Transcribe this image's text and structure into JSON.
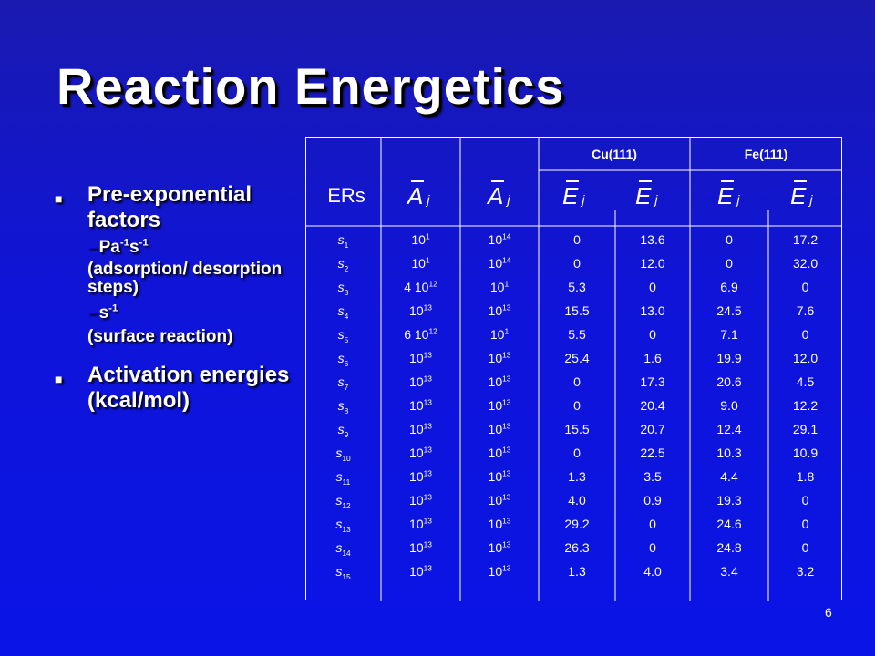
{
  "title": "Reaction Energetics",
  "bullets": {
    "b1": "Pre-exponential factors",
    "b1_sub1_pa": "Pa",
    "b1_sub1_s": "s",
    "b1_sub1_exp1": "-1",
    "b1_sub1_exp2": "-1",
    "b1_sub1_note": "(adsorption/ desorption steps)",
    "b1_sub2": "s",
    "b1_sub2_exp": "-1",
    "b1_sub2_note": "(surface reaction)",
    "b2": "Activation energies (kcal/mol)"
  },
  "table": {
    "header_cu": "Cu(111)",
    "header_fe": "Fe(111)",
    "ers": "ERs",
    "sym_a": "A",
    "sym_e": "E",
    "sub_j": "j",
    "ers_rows": [
      {
        "s": "s",
        "n": "1"
      },
      {
        "s": "s",
        "n": "2"
      },
      {
        "s": "s",
        "n": "3"
      },
      {
        "s": "s",
        "n": "4"
      },
      {
        "s": "s",
        "n": "5"
      },
      {
        "s": "s",
        "n": "6"
      },
      {
        "s": "s",
        "n": "7"
      },
      {
        "s": "s",
        "n": "8"
      },
      {
        "s": "s",
        "n": "9"
      },
      {
        "s": "s",
        "n": "10"
      },
      {
        "s": "s",
        "n": "11"
      },
      {
        "s": "s",
        "n": "12"
      },
      {
        "s": "s",
        "n": "13"
      },
      {
        "s": "s",
        "n": "14"
      },
      {
        "s": "s",
        "n": "15"
      }
    ],
    "a1": [
      {
        "m": "",
        "b": "10",
        "e": "1"
      },
      {
        "m": "",
        "b": "10",
        "e": "1"
      },
      {
        "m": "4 ",
        "b": "10",
        "e": "12"
      },
      {
        "m": "",
        "b": "10",
        "e": "13"
      },
      {
        "m": "6 ",
        "b": "10",
        "e": "12"
      },
      {
        "m": "",
        "b": "10",
        "e": "13"
      },
      {
        "m": "",
        "b": "10",
        "e": "13"
      },
      {
        "m": "",
        "b": "10",
        "e": "13"
      },
      {
        "m": "",
        "b": "10",
        "e": "13"
      },
      {
        "m": "",
        "b": "10",
        "e": "13"
      },
      {
        "m": "",
        "b": "10",
        "e": "13"
      },
      {
        "m": "",
        "b": "10",
        "e": "13"
      },
      {
        "m": "",
        "b": "10",
        "e": "13"
      },
      {
        "m": "",
        "b": "10",
        "e": "13"
      },
      {
        "m": "",
        "b": "10",
        "e": "13"
      }
    ],
    "a2": [
      {
        "b": "10",
        "e": "14"
      },
      {
        "b": "10",
        "e": "14"
      },
      {
        "b": "10",
        "e": "1"
      },
      {
        "b": "10",
        "e": "13"
      },
      {
        "b": "10",
        "e": "1"
      },
      {
        "b": "10",
        "e": "13"
      },
      {
        "b": "10",
        "e": "13"
      },
      {
        "b": "10",
        "e": "13"
      },
      {
        "b": "10",
        "e": "13"
      },
      {
        "b": "10",
        "e": "13"
      },
      {
        "b": "10",
        "e": "13"
      },
      {
        "b": "10",
        "e": "13"
      },
      {
        "b": "10",
        "e": "13"
      },
      {
        "b": "10",
        "e": "13"
      },
      {
        "b": "10",
        "e": "13"
      }
    ],
    "cu_e1": [
      "0",
      "0",
      "5.3",
      "15.5",
      "5.5",
      "25.4",
      "0",
      "0",
      "15.5",
      "0",
      "1.3",
      "4.0",
      "29.2",
      "26.3",
      "1.3"
    ],
    "cu_e2": [
      "13.6",
      "12.0",
      "0",
      "13.0",
      "0",
      "1.6",
      "17.3",
      "20.4",
      "20.7",
      "22.5",
      "3.5",
      "0.9",
      "0",
      "0",
      "4.0"
    ],
    "fe_e1": [
      "0",
      "0",
      "6.9",
      "24.5",
      "7.1",
      "19.9",
      "20.6",
      "9.0",
      "12.4",
      "10.3",
      "4.4",
      "19.3",
      "24.6",
      "24.8",
      "3.4"
    ],
    "fe_e2": [
      "17.2",
      "32.0",
      "0",
      "7.6",
      "0",
      "12.0",
      "4.5",
      "12.2",
      "29.1",
      "10.9",
      "1.8",
      "0",
      "0",
      "0",
      "3.2"
    ]
  },
  "page_number": "6",
  "colors": {
    "background": "#0f14d8",
    "grid": "#ffffff",
    "text": "#ffffff"
  }
}
